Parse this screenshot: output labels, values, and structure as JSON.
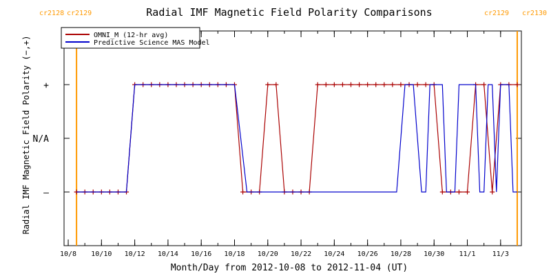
{
  "chart_data": {
    "type": "line",
    "title": "Radial IMF Magnetic Field Polarity Comparisons",
    "xlabel": "Month/Day from 2012-10-08 to 2012-11-04 (UT)",
    "ylabel": "Radial IMF Magnetic Field Polarity (−,+)",
    "x_unit": "date",
    "xlim": [
      "2012-10-07T18:00",
      "2012-11-04T06:00"
    ],
    "x_ticks": [
      {
        "date": "2012-10-08",
        "label": "10/8"
      },
      {
        "date": "2012-10-10",
        "label": "10/10"
      },
      {
        "date": "2012-10-12",
        "label": "10/12"
      },
      {
        "date": "2012-10-14",
        "label": "10/14"
      },
      {
        "date": "2012-10-16",
        "label": "10/16"
      },
      {
        "date": "2012-10-18",
        "label": "10/18"
      },
      {
        "date": "2012-10-20",
        "label": "10/20"
      },
      {
        "date": "2012-10-22",
        "label": "10/22"
      },
      {
        "date": "2012-10-24",
        "label": "10/24"
      },
      {
        "date": "2012-10-26",
        "label": "10/26"
      },
      {
        "date": "2012-10-28",
        "label": "10/28"
      },
      {
        "date": "2012-10-30",
        "label": "10/30"
      },
      {
        "date": "2012-11-01",
        "label": "11/1"
      },
      {
        "date": "2012-11-03",
        "label": "11/3"
      }
    ],
    "y_ticks": [
      {
        "value": 1,
        "label": "+"
      },
      {
        "value": 0,
        "label": "N/A"
      },
      {
        "value": -1,
        "label": "–"
      }
    ],
    "ylim": [
      -2,
      2
    ],
    "carrington_markers": [
      {
        "date": "2012-10-08T12:00",
        "left_label": "cr2128",
        "right_label": "cr2129",
        "label_side": "left"
      },
      {
        "date": "2012-11-04T00:00",
        "left_label": "cr2129",
        "right_label": "cr2130",
        "label_side": "right"
      }
    ],
    "legend": {
      "placement": "top-left"
    },
    "series": [
      {
        "name": "OMNI_M (12-hr avg)",
        "color": "#aa0000",
        "marker": "plus",
        "points": [
          [
            "2012-10-08T12:00",
            -1
          ],
          [
            "2012-10-09T00:00",
            -1
          ],
          [
            "2012-10-09T12:00",
            -1
          ],
          [
            "2012-10-10T00:00",
            -1
          ],
          [
            "2012-10-10T12:00",
            -1
          ],
          [
            "2012-10-11T00:00",
            -1
          ],
          [
            "2012-10-11T12:00",
            -1
          ],
          [
            "2012-10-12T00:00",
            1
          ],
          [
            "2012-10-12T12:00",
            1
          ],
          [
            "2012-10-13T00:00",
            1
          ],
          [
            "2012-10-13T12:00",
            1
          ],
          [
            "2012-10-14T00:00",
            1
          ],
          [
            "2012-10-14T12:00",
            1
          ],
          [
            "2012-10-15T00:00",
            1
          ],
          [
            "2012-10-15T12:00",
            1
          ],
          [
            "2012-10-16T00:00",
            1
          ],
          [
            "2012-10-16T12:00",
            1
          ],
          [
            "2012-10-17T00:00",
            1
          ],
          [
            "2012-10-17T12:00",
            1
          ],
          [
            "2012-10-18T00:00",
            1
          ],
          [
            "2012-10-18T12:00",
            -1
          ],
          [
            "2012-10-19T00:00",
            -1
          ],
          [
            "2012-10-19T12:00",
            -1
          ],
          [
            "2012-10-20T00:00",
            1
          ],
          [
            "2012-10-20T12:00",
            1
          ],
          [
            "2012-10-21T00:00",
            -1
          ],
          [
            "2012-10-21T12:00",
            -1
          ],
          [
            "2012-10-22T00:00",
            -1
          ],
          [
            "2012-10-22T12:00",
            -1
          ],
          [
            "2012-10-23T00:00",
            1
          ],
          [
            "2012-10-23T12:00",
            1
          ],
          [
            "2012-10-24T00:00",
            1
          ],
          [
            "2012-10-24T12:00",
            1
          ],
          [
            "2012-10-25T00:00",
            1
          ],
          [
            "2012-10-25T12:00",
            1
          ],
          [
            "2012-10-26T00:00",
            1
          ],
          [
            "2012-10-26T12:00",
            1
          ],
          [
            "2012-10-27T00:00",
            1
          ],
          [
            "2012-10-27T12:00",
            1
          ],
          [
            "2012-10-28T00:00",
            1
          ],
          [
            "2012-10-28T12:00",
            1
          ],
          [
            "2012-10-29T00:00",
            1
          ],
          [
            "2012-10-29T12:00",
            1
          ],
          [
            "2012-10-30T00:00",
            1
          ],
          [
            "2012-10-30T12:00",
            -1
          ],
          [
            "2012-10-31T00:00",
            -1
          ],
          [
            "2012-10-31T12:00",
            -1
          ],
          [
            "2012-11-01T00:00",
            -1
          ],
          [
            "2012-11-01T12:00",
            1
          ],
          [
            "2012-11-02T00:00",
            1
          ],
          [
            "2012-11-02T12:00",
            -1
          ],
          [
            "2012-11-03T00:00",
            1
          ],
          [
            "2012-11-03T12:00",
            1
          ],
          [
            "2012-11-04T00:00",
            1
          ]
        ]
      },
      {
        "name": "Predictive Science MAS Model",
        "color": "#0000cc",
        "points": [
          [
            "2012-10-08T12:00",
            -1
          ],
          [
            "2012-10-11T12:00",
            -1
          ],
          [
            "2012-10-12T00:00",
            1
          ],
          [
            "2012-10-18T00:00",
            1
          ],
          [
            "2012-10-18T18:00",
            -1
          ],
          [
            "2012-10-27T18:00",
            -1
          ],
          [
            "2012-10-28T06:00",
            1
          ],
          [
            "2012-10-28T18:00",
            1
          ],
          [
            "2012-10-29T06:00",
            -1
          ],
          [
            "2012-10-29T12:00",
            -1
          ],
          [
            "2012-10-29T18:00",
            1
          ],
          [
            "2012-10-30T12:00",
            1
          ],
          [
            "2012-10-30T18:00",
            -1
          ],
          [
            "2012-10-31T06:00",
            -1
          ],
          [
            "2012-10-31T12:00",
            1
          ],
          [
            "2012-11-01T12:00",
            1
          ],
          [
            "2012-11-01T18:00",
            -1
          ],
          [
            "2012-11-02T00:00",
            -1
          ],
          [
            "2012-11-02T06:00",
            1
          ],
          [
            "2012-11-02T12:00",
            1
          ],
          [
            "2012-11-02T18:00",
            -1
          ],
          [
            "2012-11-03T00:00",
            1
          ],
          [
            "2012-11-03T12:00",
            1
          ],
          [
            "2012-11-03T18:00",
            -1
          ],
          [
            "2012-11-04T00:00",
            -1
          ]
        ]
      }
    ],
    "colors": {
      "axis": "#000000",
      "text": "#000000",
      "cr_line": "#ff9900",
      "cr_label": "#ff9900"
    }
  }
}
